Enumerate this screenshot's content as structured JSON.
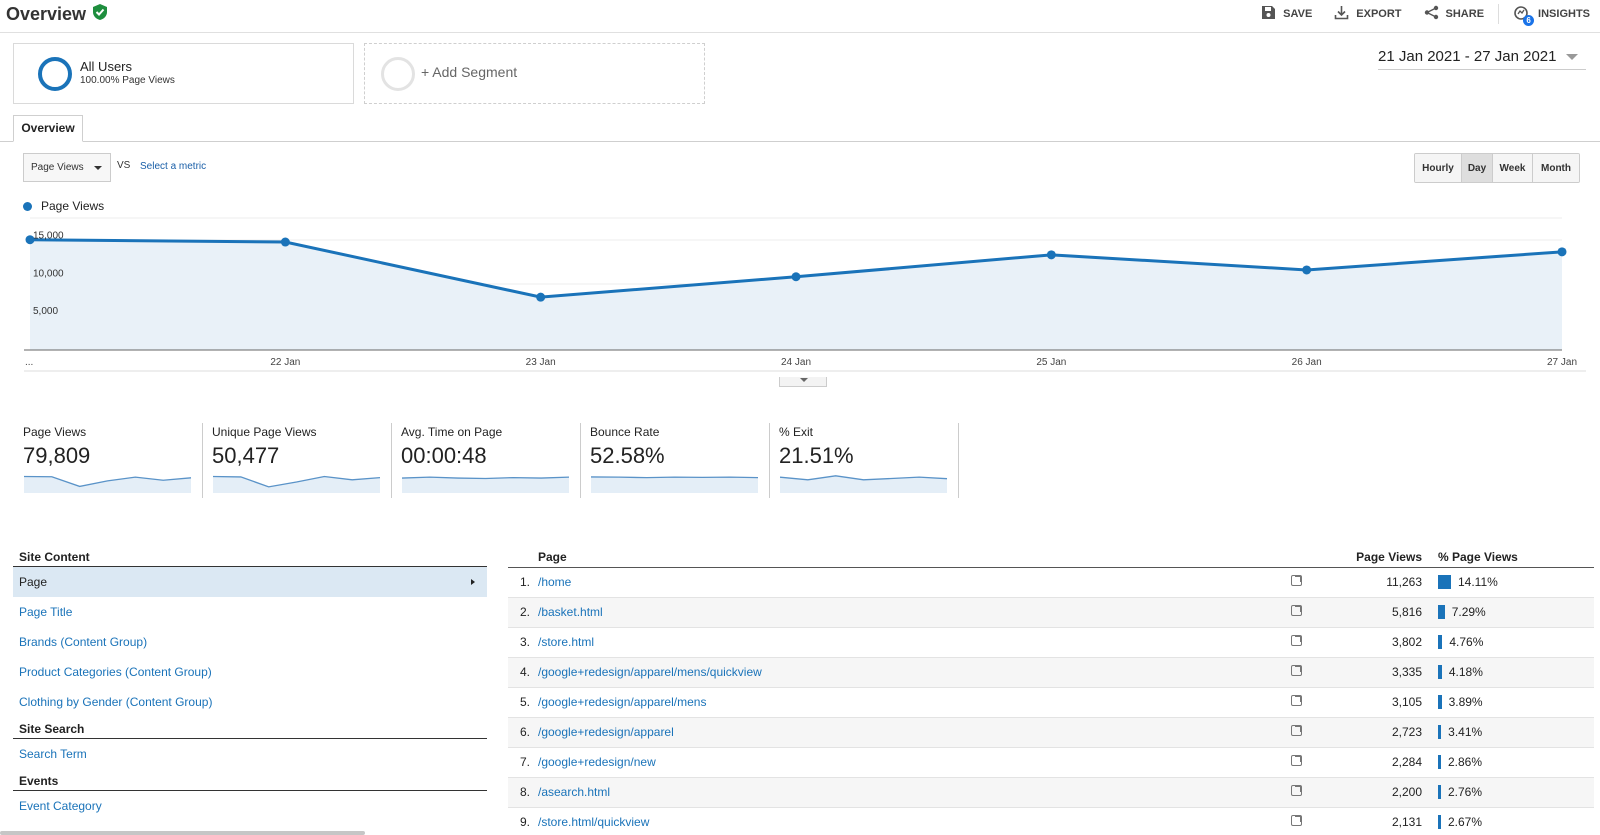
{
  "header": {
    "title": "Overview",
    "toolbar": {
      "save": "SAVE",
      "export": "EXPORT",
      "share": "SHARE",
      "insights": "INSIGHTS",
      "insights_badge": "6"
    }
  },
  "segments": {
    "all_users": {
      "name": "All Users",
      "sub": "100.00% Page Views"
    },
    "add": "+ Add Segment"
  },
  "date_range": "21 Jan 2021 - 27 Jan 2021",
  "tabs": {
    "overview": "Overview"
  },
  "metric": {
    "selected": "Page Views",
    "vs": "VS",
    "select_metric": "Select a metric"
  },
  "granularity": [
    {
      "label": "Hourly",
      "active": false
    },
    {
      "label": "Day",
      "active": true
    },
    {
      "label": "Week",
      "active": false
    },
    {
      "label": "Month",
      "active": false
    }
  ],
  "chart_data": {
    "type": "area",
    "series": [
      {
        "name": "Page Views",
        "values": [
          14600,
          14300,
          7000,
          9700,
          12600,
          10600,
          13000
        ]
      }
    ],
    "x": [
      "21 Jan",
      "22 Jan",
      "23 Jan",
      "24 Jan",
      "25 Jan",
      "26 Jan",
      "27 Jan"
    ],
    "x_tick_labels": [
      "...",
      "22 Jan",
      "23 Jan",
      "24 Jan",
      "25 Jan",
      "26 Jan",
      "27 Jan"
    ],
    "y_ticks": [
      "15,000",
      "10,000",
      "5,000"
    ],
    "ylim": [
      0,
      15000
    ],
    "legend": "top-left",
    "grid": true,
    "color": "#1a73b9",
    "fill": "#e9f1f8"
  },
  "scorecards": [
    {
      "label": "Page Views",
      "value": "79,809",
      "spark": [
        0.75,
        0.74,
        0.3,
        0.55,
        0.72,
        0.58,
        0.69
      ]
    },
    {
      "label": "Unique Page Views",
      "value": "50,477",
      "spark": [
        0.75,
        0.73,
        0.28,
        0.5,
        0.75,
        0.6,
        0.7
      ]
    },
    {
      "label": "Avg. Time on Page",
      "value": "00:00:48",
      "spark": [
        0.68,
        0.72,
        0.68,
        0.66,
        0.7,
        0.68,
        0.72
      ]
    },
    {
      "label": "Bounce Rate",
      "value": "52.58%",
      "spark": [
        0.73,
        0.72,
        0.7,
        0.72,
        0.71,
        0.72,
        0.7
      ]
    },
    {
      "label": "% Exit",
      "value": "21.51%",
      "spark": [
        0.72,
        0.6,
        0.78,
        0.6,
        0.66,
        0.72,
        0.65
      ]
    }
  ],
  "site_content": {
    "heading": "Site Content",
    "items": [
      "Page",
      "Page Title",
      "Brands (Content Group)",
      "Product Categories (Content Group)",
      "Clothing by Gender (Content Group)"
    ],
    "site_search_heading": "Site Search",
    "site_search_items": [
      "Search Term"
    ],
    "events_heading": "Events",
    "events_items": [
      "Event Category"
    ]
  },
  "table": {
    "headers": {
      "page": "Page",
      "page_views": "Page Views",
      "pct": "% Page Views"
    },
    "rows": [
      {
        "n": "1.",
        "page": "/home",
        "pv": "11,263",
        "pct": "14.11%",
        "pct_value": 14.11
      },
      {
        "n": "2.",
        "page": "/basket.html",
        "pv": "5,816",
        "pct": "7.29%",
        "pct_value": 7.29
      },
      {
        "n": "3.",
        "page": "/store.html",
        "pv": "3,802",
        "pct": "4.76%",
        "pct_value": 4.76
      },
      {
        "n": "4.",
        "page": "/google+redesign/apparel/mens/quickview",
        "pv": "3,335",
        "pct": "4.18%",
        "pct_value": 4.18
      },
      {
        "n": "5.",
        "page": "/google+redesign/apparel/mens",
        "pv": "3,105",
        "pct": "3.89%",
        "pct_value": 3.89
      },
      {
        "n": "6.",
        "page": "/google+redesign/apparel",
        "pv": "2,723",
        "pct": "3.41%",
        "pct_value": 3.41
      },
      {
        "n": "7.",
        "page": "/google+redesign/new",
        "pv": "2,284",
        "pct": "2.86%",
        "pct_value": 2.86
      },
      {
        "n": "8.",
        "page": "/asearch.html",
        "pv": "2,200",
        "pct": "2.76%",
        "pct_value": 2.76
      },
      {
        "n": "9.",
        "page": "/store.html/quickview",
        "pv": "2,131",
        "pct": "2.67%",
        "pct_value": 2.67
      }
    ]
  }
}
